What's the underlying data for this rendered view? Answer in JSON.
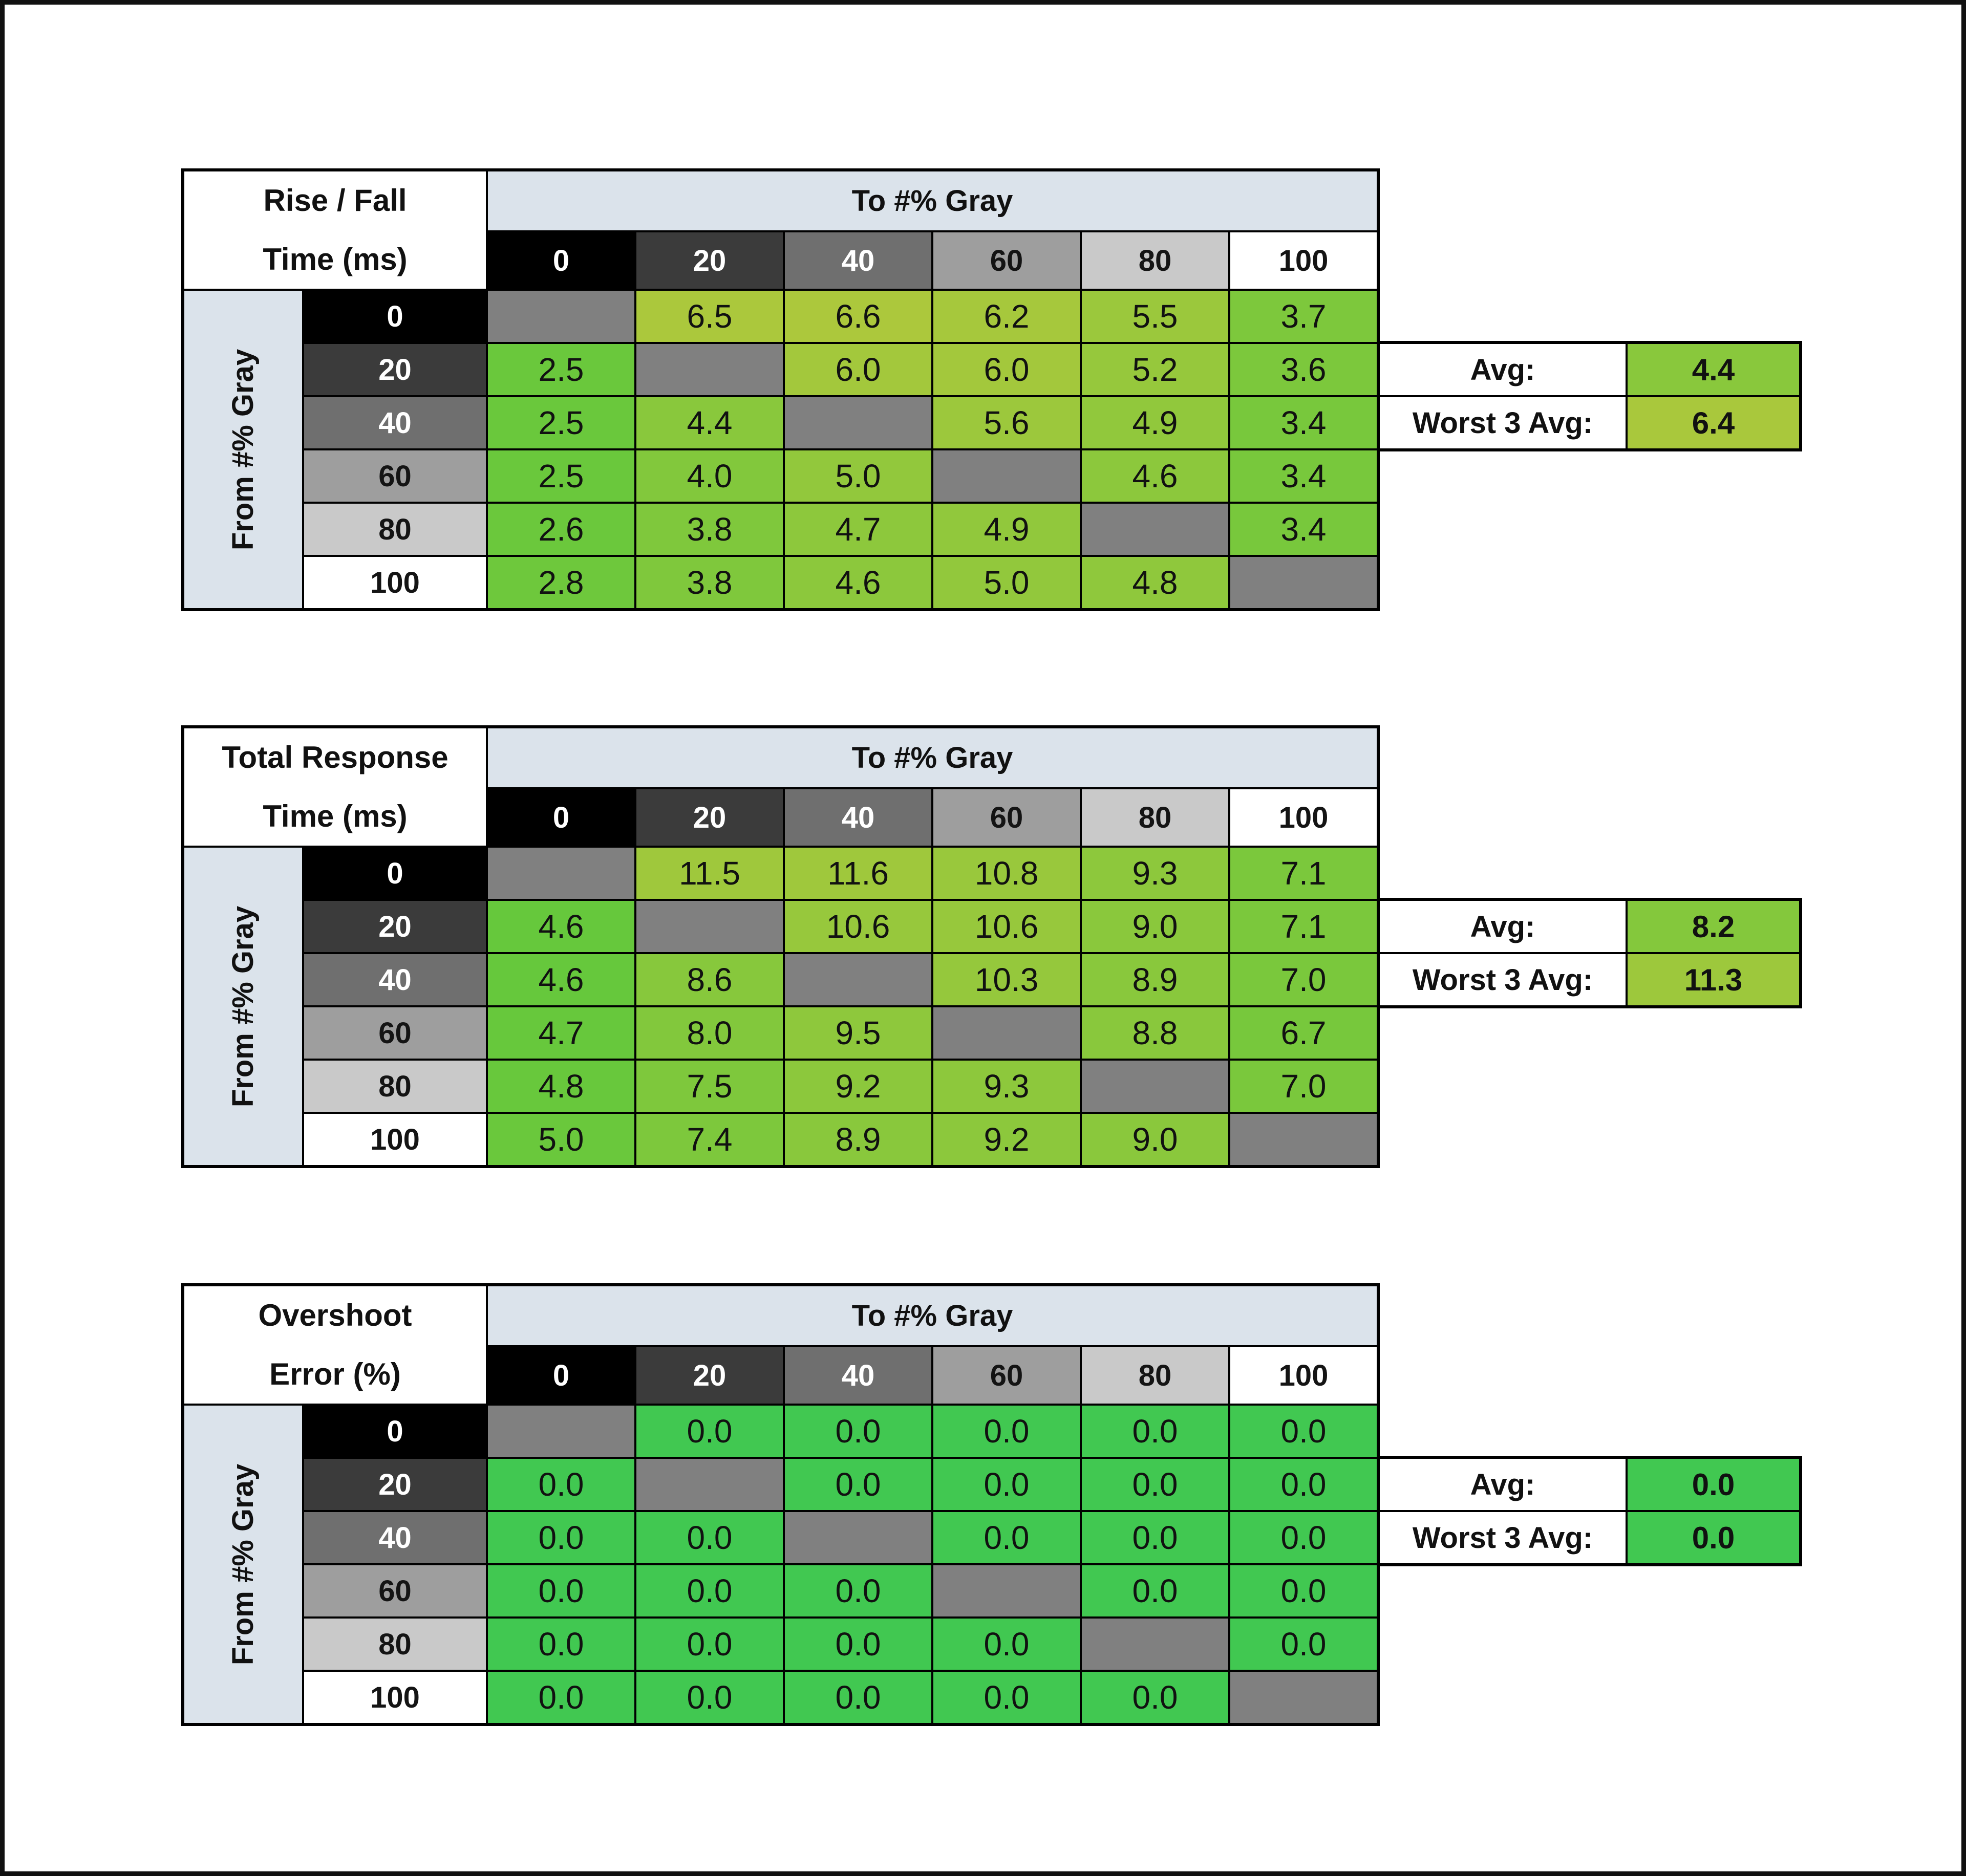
{
  "shared": {
    "to_label": "To #% Gray",
    "from_label": "From #% Gray",
    "gray_levels": [
      "0",
      "20",
      "40",
      "60",
      "80",
      "100"
    ],
    "header_band_color": "#dbe3eb",
    "level_colors": [
      "#000000",
      "#3b3b3b",
      "#6f6f6f",
      "#9e9e9e",
      "#c9c9c9",
      "#ffffff"
    ],
    "level_text_colors": [
      "#ffffff",
      "#ffffff",
      "#ffffff",
      "#141414",
      "#141414",
      "#141414"
    ],
    "diagonal_color": "#808080",
    "border_color": "#000000",
    "avg_label": "Avg:",
    "worst_label": "Worst 3 Avg:"
  },
  "chart_data": [
    {
      "type": "heatmap",
      "title_line1": "Rise / Fall",
      "title_line2": "Time (ms)",
      "x_axis_label": "To #% Gray",
      "y_axis_label": "From #% Gray",
      "categories": [
        "0",
        "20",
        "40",
        "60",
        "80",
        "100"
      ],
      "matrix": [
        [
          null,
          "6.5",
          "6.6",
          "6.2",
          "5.5",
          "3.7"
        ],
        [
          "2.5",
          null,
          "6.0",
          "6.0",
          "5.2",
          "3.6"
        ],
        [
          "2.5",
          "4.4",
          null,
          "5.6",
          "4.9",
          "3.4"
        ],
        [
          "2.5",
          "4.0",
          "5.0",
          null,
          "4.6",
          "3.4"
        ],
        [
          "2.6",
          "3.8",
          "4.7",
          "4.9",
          null,
          "3.4"
        ],
        [
          "2.8",
          "3.8",
          "4.6",
          "5.0",
          "4.8",
          null
        ]
      ],
      "avg": "4.4",
      "worst3_avg": "6.4",
      "color_scale": {
        "hue_start": 118,
        "hue_end": 62,
        "yellow_at": 8,
        "sat": 56,
        "light": 51
      }
    },
    {
      "type": "heatmap",
      "title_line1": "Total Response",
      "title_line2": "Time (ms)",
      "x_axis_label": "To #% Gray",
      "y_axis_label": "From #% Gray",
      "categories": [
        "0",
        "20",
        "40",
        "60",
        "80",
        "100"
      ],
      "matrix": [
        [
          null,
          "11.5",
          "11.6",
          "10.8",
          "9.3",
          "7.1"
        ],
        [
          "4.6",
          null,
          "10.6",
          "10.6",
          "9.0",
          "7.1"
        ],
        [
          "4.6",
          "8.6",
          null,
          "10.3",
          "8.9",
          "7.0"
        ],
        [
          "4.7",
          "8.0",
          "9.5",
          null,
          "8.8",
          "6.7"
        ],
        [
          "4.8",
          "7.5",
          "9.2",
          "9.3",
          null,
          "7.0"
        ],
        [
          "5.0",
          "7.4",
          "8.9",
          "9.2",
          "9.0",
          null
        ]
      ],
      "avg": "8.2",
      "worst3_avg": "11.3",
      "color_scale": {
        "hue_start": 118,
        "hue_end": 62,
        "yellow_at": 16,
        "sat": 56,
        "light": 51
      }
    },
    {
      "type": "heatmap",
      "title_line1": "Overshoot",
      "title_line2": "Error (%)",
      "x_axis_label": "To #% Gray",
      "y_axis_label": "From #% Gray",
      "categories": [
        "0",
        "20",
        "40",
        "60",
        "80",
        "100"
      ],
      "matrix": [
        [
          null,
          "0.0",
          "0.0",
          "0.0",
          "0.0",
          "0.0"
        ],
        [
          "0.0",
          null,
          "0.0",
          "0.0",
          "0.0",
          "0.0"
        ],
        [
          "0.0",
          "0.0",
          null,
          "0.0",
          "0.0",
          "0.0"
        ],
        [
          "0.0",
          "0.0",
          "0.0",
          null,
          "0.0",
          "0.0"
        ],
        [
          "0.0",
          "0.0",
          "0.0",
          "0.0",
          null,
          "0.0"
        ],
        [
          "0.0",
          "0.0",
          "0.0",
          "0.0",
          "0.0",
          null
        ]
      ],
      "avg": "0.0",
      "worst3_avg": "0.0",
      "color_scale": {
        "hue_start": 127,
        "hue_end": 62,
        "yellow_at": 20,
        "sat": 55,
        "light": 52
      }
    }
  ]
}
